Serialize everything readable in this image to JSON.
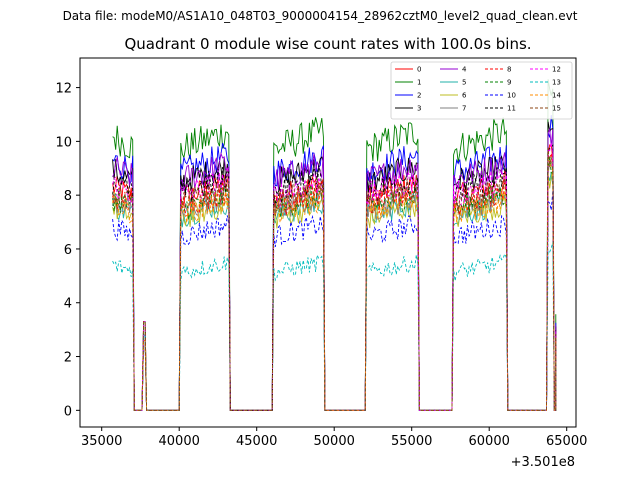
{
  "chart_data": {
    "type": "line",
    "suptitle": "Data file: modeM0/AS1A10_048T03_9000004154_28962cztM0_level2_quad_clean.evt",
    "title": "Quadrant 0 module wise count rates with 100.0s bins.",
    "xlabel": "",
    "ylabel": "",
    "xlim": [
      33600,
      65600
    ],
    "ylim": [
      -0.62,
      13.1
    ],
    "x_offset_label": "+3.501e8",
    "x_ticks": [
      35000,
      40000,
      45000,
      50000,
      55000,
      60000,
      65000
    ],
    "x_tick_labels": [
      "35000",
      "40000",
      "45000",
      "50000",
      "55000",
      "60000",
      "65000"
    ],
    "y_ticks": [
      0,
      2,
      4,
      6,
      8,
      10,
      12
    ],
    "y_tick_labels": [
      "0",
      "2",
      "4",
      "6",
      "8",
      "10",
      "12"
    ],
    "legend_position": "top-right",
    "segments": [
      {
        "start": 35700,
        "end": 37000
      },
      {
        "start": 40100,
        "end": 43200
      },
      {
        "start": 46100,
        "end": 49300
      },
      {
        "start": 52100,
        "end": 55400
      },
      {
        "start": 57700,
        "end": 61100
      },
      {
        "start": 63800,
        "end": 64100
      }
    ],
    "gaps_zero": [
      [
        37300,
        37600
      ],
      [
        37900,
        39900
      ],
      [
        43400,
        45900
      ],
      [
        49500,
        51900
      ],
      [
        55600,
        57500
      ],
      [
        61300,
        63500
      ]
    ],
    "spike": {
      "x": 37750,
      "values": [
        3.3,
        2.8,
        2.6
      ]
    },
    "series": [
      {
        "name": "0",
        "color": "#ff0000",
        "dash": "solid",
        "level": 8.3
      },
      {
        "name": "1",
        "color": "#008000",
        "dash": "solid",
        "level": 10.2
      },
      {
        "name": "2",
        "color": "#0000ff",
        "dash": "solid",
        "level": 9.3
      },
      {
        "name": "3",
        "color": "#000000",
        "dash": "solid",
        "level": 8.9
      },
      {
        "name": "4",
        "color": "#9400d3",
        "dash": "solid",
        "level": 9.0
      },
      {
        "name": "5",
        "color": "#20b2aa",
        "dash": "solid",
        "level": 7.6
      },
      {
        "name": "6",
        "color": "#bcbd22",
        "dash": "solid",
        "level": 7.5
      },
      {
        "name": "7",
        "color": "#808080",
        "dash": "solid",
        "level": 7.8
      },
      {
        "name": "8",
        "color": "#ff0000",
        "dash": "dashed",
        "level": 8.0
      },
      {
        "name": "9",
        "color": "#008000",
        "dash": "dashed",
        "level": 7.9
      },
      {
        "name": "10",
        "color": "#0000ff",
        "dash": "dashed",
        "level": 6.8
      },
      {
        "name": "11",
        "color": "#000000",
        "dash": "dashed",
        "level": 8.5
      },
      {
        "name": "12",
        "color": "#ff00ff",
        "dash": "dashed",
        "level": 8.4
      },
      {
        "name": "13",
        "color": "#00bcbc",
        "dash": "dashed",
        "level": 5.4
      },
      {
        "name": "14",
        "color": "#ff8c00",
        "dash": "dashed",
        "level": 7.7
      },
      {
        "name": "15",
        "color": "#8b4513",
        "dash": "dashed",
        "level": 8.1
      }
    ]
  }
}
